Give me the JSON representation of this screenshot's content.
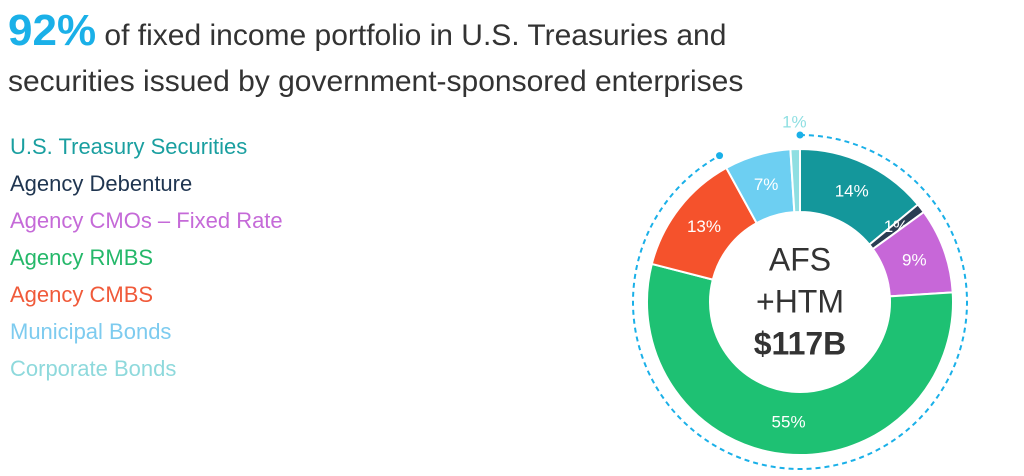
{
  "chart_data": {
    "type": "donut",
    "title_highlight": "92%",
    "title": "of fixed income portfolio in U.S. Treasuries and securities issued by government-sponsored enterprises",
    "center_label": [
      "AFS",
      "+HTM",
      "$117B"
    ],
    "categories": [
      "U.S. Treasury Securities",
      "Agency Debenture",
      "Agency CMOs – Fixed Rate",
      "Agency RMBS",
      "Agency CMBS",
      "Municipal Bonds",
      "Corporate Bonds"
    ],
    "values": [
      14,
      1,
      9,
      55,
      13,
      7,
      1
    ],
    "value_labels": [
      "14%",
      "1%",
      "9%",
      "55%",
      "13%",
      "7%",
      "1%"
    ],
    "colors": [
      "#14979b",
      "#2b3d52",
      "#c767d8",
      "#1ec173",
      "#f5522c",
      "#6dcff2",
      "#8fdfe2"
    ],
    "legend_colors": [
      "#1a9fa0",
      "#1f3550",
      "#c56ad8",
      "#25b86a",
      "#f05a3a",
      "#7dcbef",
      "#8ed9dc"
    ]
  }
}
